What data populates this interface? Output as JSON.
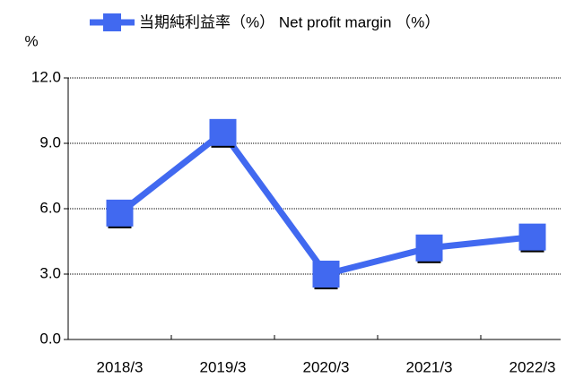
{
  "chart_data": {
    "type": "line",
    "legend": "当期純利益率（%） Net profit margin （%）",
    "y_unit": "%",
    "categories": [
      "2018/3",
      "2019/3",
      "2020/3",
      "2021/3",
      "2022/3"
    ],
    "series": [
      {
        "name": "当期純利益率（%） Net profit margin （%）",
        "color": "#4169f0",
        "values": [
          5.8,
          9.5,
          3.0,
          4.2,
          4.7
        ]
      }
    ],
    "ylim": [
      0,
      12
    ],
    "yticks": [
      {
        "value": 0,
        "label": "0.0"
      },
      {
        "value": 3,
        "label": "3.0"
      },
      {
        "value": 6,
        "label": "6.0"
      },
      {
        "value": 9,
        "label": "9.0"
      },
      {
        "value": 12,
        "label": "12.0"
      }
    ],
    "grid": true
  }
}
